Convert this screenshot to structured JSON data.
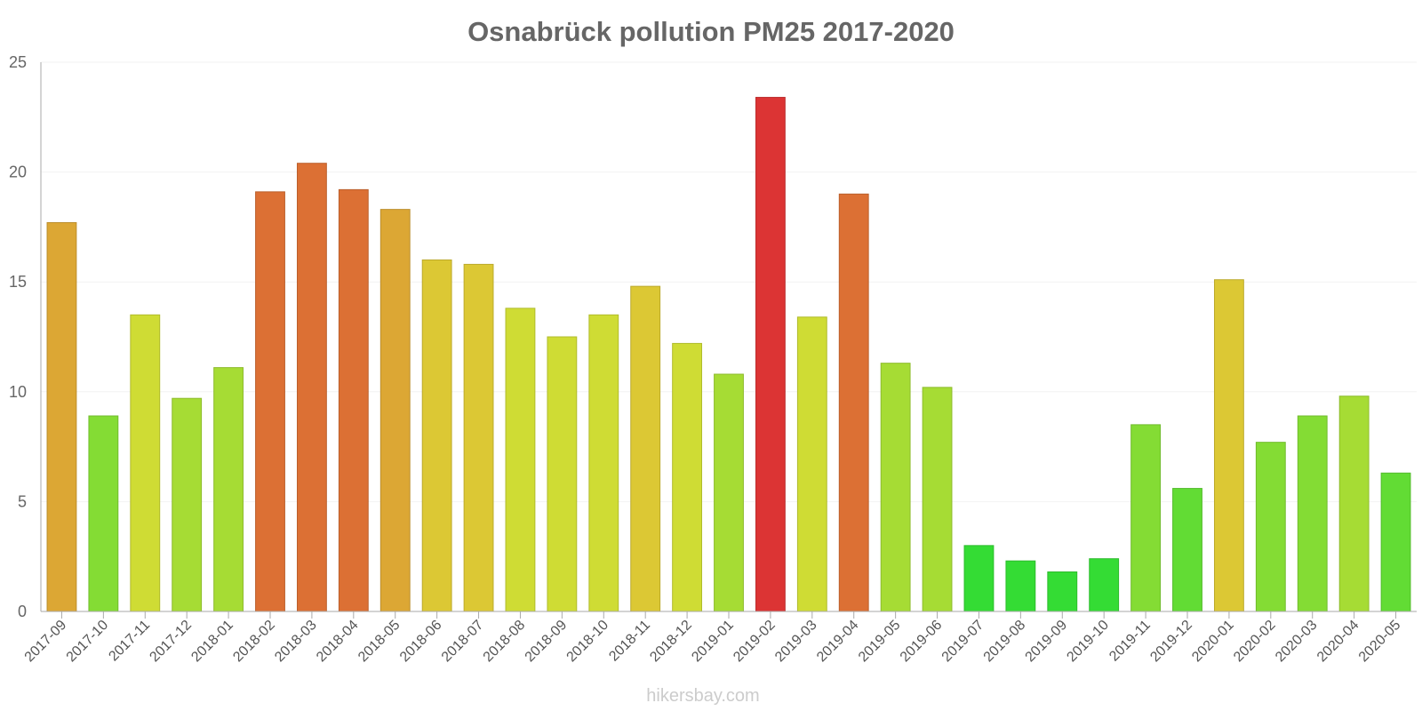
{
  "chart_data": {
    "type": "bar",
    "title": "Osnabrück pollution PM25 2017-2020",
    "xlabel": "",
    "ylabel": "",
    "ylim": [
      0,
      25
    ],
    "yticks": [
      0,
      5,
      10,
      15,
      20,
      25
    ],
    "grid": true,
    "categories": [
      "2017-09",
      "2017-10",
      "2017-11",
      "2017-12",
      "2018-01",
      "2018-02",
      "2018-03",
      "2018-04",
      "2018-05",
      "2018-06",
      "2018-07",
      "2018-08",
      "2018-09",
      "2018-10",
      "2018-11",
      "2018-12",
      "2019-01",
      "2019-02",
      "2019-03",
      "2019-04",
      "2019-05",
      "2019-06",
      "2019-07",
      "2019-08",
      "2019-09",
      "2019-10",
      "2019-11",
      "2019-12",
      "2020-01",
      "2020-02",
      "2020-03",
      "2020-04",
      "2020-05"
    ],
    "values": [
      17.7,
      8.9,
      13.5,
      9.7,
      11.1,
      19.1,
      20.4,
      19.2,
      18.3,
      16.0,
      15.8,
      13.8,
      12.5,
      13.5,
      14.8,
      12.2,
      10.8,
      23.4,
      13.4,
      19.0,
      11.3,
      10.2,
      3.0,
      2.3,
      1.8,
      2.4,
      8.5,
      5.6,
      15.1,
      7.7,
      8.9,
      9.8,
      6.3
    ],
    "colors": [
      "#DCA734",
      "#84DC34",
      "#CFDC34",
      "#A6DC34",
      "#A6DC34",
      "#DC7034",
      "#DC7034",
      "#DC7034",
      "#DCA734",
      "#DCC834",
      "#DCC834",
      "#CFDC34",
      "#CFDC34",
      "#CFDC34",
      "#DCC834",
      "#CFDC34",
      "#A6DC34",
      "#DC3434",
      "#CFDC34",
      "#DC7034",
      "#A6DC34",
      "#A6DC34",
      "#34DC34",
      "#34DC34",
      "#34DC34",
      "#34DC34",
      "#84DC34",
      "#62DC34",
      "#DCC834",
      "#84DC34",
      "#84DC34",
      "#A6DC34",
      "#62DC34"
    ]
  },
  "watermark": "hikersbay.com"
}
